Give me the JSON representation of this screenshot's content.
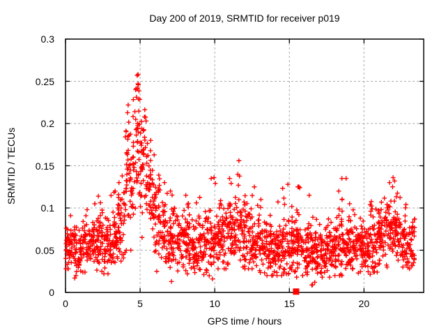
{
  "chart_data": {
    "type": "scatter",
    "title": "Day 200 of 2019, SRMTID for receiver p019",
    "xlabel": "GPS time / hours",
    "ylabel": "SRMTID / TECUs",
    "xlim": [
      0,
      24
    ],
    "ylim": [
      0,
      0.3
    ],
    "grid": true,
    "legend_position": "none",
    "xticks": [
      {
        "v": 0,
        "label": "0"
      },
      {
        "v": 5,
        "label": "5"
      },
      {
        "v": 10,
        "label": "10"
      },
      {
        "v": 15,
        "label": "15"
      },
      {
        "v": 20,
        "label": "20"
      }
    ],
    "yticks": [
      {
        "v": 0,
        "label": "0"
      },
      {
        "v": 0.05,
        "label": "0.05"
      },
      {
        "v": 0.1,
        "label": "0.1"
      },
      {
        "v": 0.15,
        "label": "0.15"
      },
      {
        "v": 0.2,
        "label": "0.2"
      },
      {
        "v": 0.25,
        "label": "0.25"
      },
      {
        "v": 0.3,
        "label": "0.3"
      }
    ],
    "series": [
      {
        "name": "SRMTID",
        "marker": "plus",
        "color": "#ff0000",
        "seed": 1337,
        "x_data_end": 23.4,
        "envelope_bins_format": [
          "x_start",
          "x_end",
          "n_points",
          "center",
          "std",
          "max",
          "min"
        ],
        "envelope_bins": [
          [
            0.0,
            0.5,
            44,
            0.052,
            0.012,
            0.092,
            0.028
          ],
          [
            0.5,
            1.0,
            44,
            0.05,
            0.013,
            0.09,
            0.015
          ],
          [
            1.0,
            1.5,
            44,
            0.055,
            0.013,
            0.098,
            0.024
          ],
          [
            1.5,
            2.0,
            44,
            0.057,
            0.014,
            0.105,
            0.028
          ],
          [
            2.0,
            2.5,
            44,
            0.058,
            0.015,
            0.115,
            0.025
          ],
          [
            2.5,
            3.0,
            44,
            0.055,
            0.014,
            0.1,
            0.022
          ],
          [
            3.0,
            3.5,
            44,
            0.062,
            0.016,
            0.12,
            0.03
          ],
          [
            3.5,
            4.0,
            44,
            0.078,
            0.02,
            0.14,
            0.035
          ],
          [
            4.0,
            4.5,
            48,
            0.13,
            0.035,
            0.235,
            0.05
          ],
          [
            4.5,
            5.0,
            48,
            0.175,
            0.038,
            0.258,
            0.075
          ],
          [
            5.0,
            5.5,
            48,
            0.155,
            0.033,
            0.235,
            0.065
          ],
          [
            5.5,
            6.0,
            44,
            0.11,
            0.028,
            0.18,
            0.048
          ],
          [
            6.0,
            6.5,
            44,
            0.085,
            0.024,
            0.155,
            0.025
          ],
          [
            6.5,
            7.0,
            44,
            0.07,
            0.02,
            0.13,
            0.012
          ],
          [
            7.0,
            7.5,
            44,
            0.064,
            0.018,
            0.12,
            0.012
          ],
          [
            7.5,
            8.0,
            44,
            0.06,
            0.017,
            0.115,
            0.022
          ],
          [
            8.0,
            8.5,
            44,
            0.06,
            0.017,
            0.125,
            0.022
          ],
          [
            8.5,
            9.0,
            44,
            0.055,
            0.016,
            0.11,
            0.02
          ],
          [
            9.0,
            9.5,
            44,
            0.055,
            0.016,
            0.12,
            0.018
          ],
          [
            9.5,
            10.0,
            44,
            0.06,
            0.018,
            0.135,
            0.018
          ],
          [
            10.0,
            10.5,
            44,
            0.06,
            0.018,
            0.13,
            0.025
          ],
          [
            10.5,
            11.0,
            44,
            0.065,
            0.019,
            0.14,
            0.028
          ],
          [
            11.0,
            11.5,
            44,
            0.07,
            0.022,
            0.148,
            0.03
          ],
          [
            11.5,
            12.0,
            44,
            0.075,
            0.024,
            0.157,
            0.03
          ],
          [
            12.0,
            12.5,
            44,
            0.065,
            0.02,
            0.135,
            0.028
          ],
          [
            12.5,
            13.0,
            44,
            0.06,
            0.018,
            0.125,
            0.025
          ],
          [
            13.0,
            13.5,
            44,
            0.055,
            0.016,
            0.11,
            0.02
          ],
          [
            13.5,
            14.0,
            44,
            0.05,
            0.015,
            0.1,
            0.02
          ],
          [
            14.0,
            14.5,
            44,
            0.05,
            0.016,
            0.115,
            0.02
          ],
          [
            14.5,
            15.0,
            44,
            0.055,
            0.017,
            0.13,
            0.022
          ],
          [
            15.0,
            15.5,
            44,
            0.05,
            0.015,
            0.11,
            0.018
          ],
          [
            15.5,
            16.0,
            44,
            0.055,
            0.017,
            0.125,
            0.02
          ],
          [
            16.0,
            16.5,
            44,
            0.048,
            0.015,
            0.115,
            0.01
          ],
          [
            16.5,
            17.0,
            44,
            0.045,
            0.014,
            0.095,
            0.008
          ],
          [
            17.0,
            17.5,
            44,
            0.05,
            0.016,
            0.11,
            0.018
          ],
          [
            17.5,
            18.0,
            44,
            0.05,
            0.016,
            0.115,
            0.018
          ],
          [
            18.0,
            18.5,
            44,
            0.055,
            0.017,
            0.12,
            0.02
          ],
          [
            18.5,
            19.0,
            44,
            0.055,
            0.018,
            0.135,
            0.02
          ],
          [
            19.0,
            19.5,
            44,
            0.05,
            0.015,
            0.105,
            0.018
          ],
          [
            19.5,
            20.0,
            44,
            0.048,
            0.015,
            0.1,
            0.018
          ],
          [
            20.0,
            20.5,
            44,
            0.05,
            0.016,
            0.112,
            0.02
          ],
          [
            20.5,
            21.0,
            44,
            0.055,
            0.017,
            0.115,
            0.024
          ],
          [
            21.0,
            21.5,
            44,
            0.065,
            0.02,
            0.126,
            0.03
          ],
          [
            21.5,
            22.0,
            44,
            0.075,
            0.022,
            0.136,
            0.03
          ],
          [
            22.0,
            22.5,
            44,
            0.07,
            0.02,
            0.13,
            0.03
          ],
          [
            22.5,
            23.0,
            44,
            0.06,
            0.018,
            0.12,
            0.028
          ],
          [
            23.0,
            23.4,
            36,
            0.055,
            0.016,
            0.1,
            0.028
          ]
        ],
        "highlight_points": [
          [
            4.8,
            0.257
          ],
          [
            4.88,
            0.246
          ],
          [
            4.7,
            0.24
          ],
          [
            11.62,
            0.156
          ],
          [
            9.95,
            0.136
          ],
          [
            18.8,
            0.135
          ],
          [
            21.95,
            0.136
          ],
          [
            22.05,
            0.132
          ],
          [
            0.62,
            0.017
          ],
          [
            0.7,
            0.02
          ],
          [
            7.1,
            0.013
          ],
          [
            9.85,
            0.016
          ],
          [
            16.55,
            0.009
          ],
          [
            16.7,
            0.012
          ],
          [
            2.2,
            0.114
          ],
          [
            3.8,
            0.138
          ],
          [
            14.9,
            0.128
          ],
          [
            15.7,
            0.124
          ]
        ]
      }
    ],
    "special_points": [
      {
        "x": 15.45,
        "y": 0.001,
        "marker": "filled-square",
        "color": "#ff0000"
      }
    ]
  },
  "colors": {
    "marker": "#ff0000",
    "grid": "#a9a9a9",
    "border": "#000000",
    "background": "#ffffff",
    "text": "#000000"
  }
}
